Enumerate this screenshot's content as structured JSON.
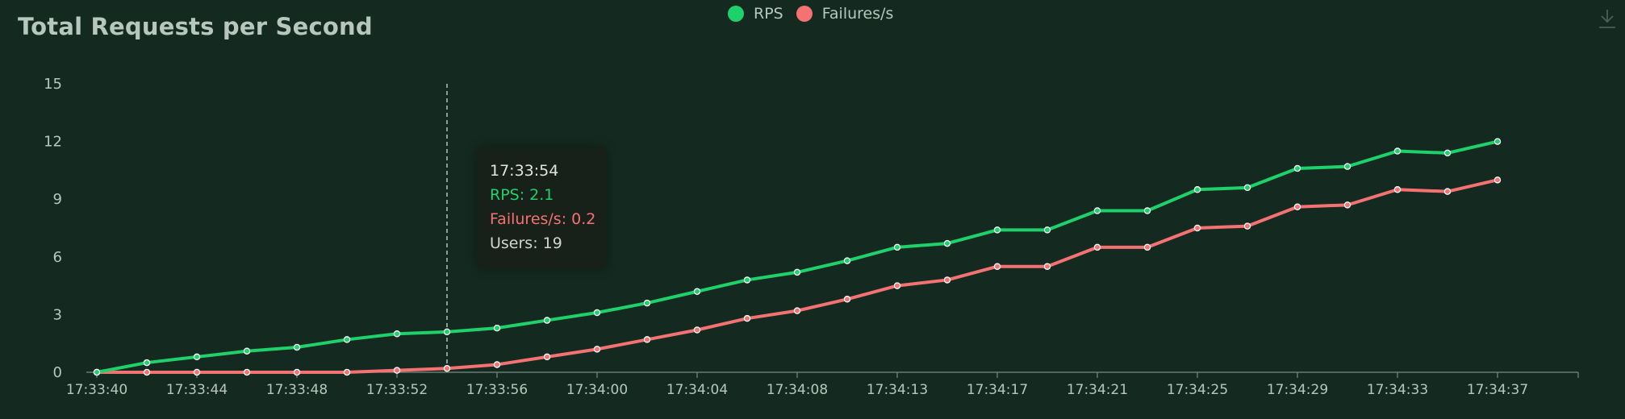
{
  "chart_data": {
    "type": "line",
    "title": "Total Requests per Second",
    "x": [
      "17:33:40",
      "17:33:42",
      "17:33:44",
      "17:33:46",
      "17:33:48",
      "17:33:50",
      "17:33:52",
      "17:33:54",
      "17:33:56",
      "17:33:58",
      "17:34:00",
      "17:34:02",
      "17:34:04",
      "17:34:06",
      "17:34:08",
      "17:34:10",
      "17:34:13",
      "17:34:15",
      "17:34:17",
      "17:34:19",
      "17:34:21",
      "17:34:23",
      "17:34:25",
      "17:34:27",
      "17:34:29",
      "17:34:31",
      "17:34:33",
      "17:34:35",
      "17:34:37"
    ],
    "x_tick_labels": [
      "17:33:40",
      "17:33:44",
      "17:33:48",
      "17:33:52",
      "17:33:56",
      "17:34:00",
      "17:34:04",
      "17:34:08",
      "17:34:13",
      "17:34:17",
      "17:34:21",
      "17:34:25",
      "17:34:29",
      "17:34:33",
      "17:34:37"
    ],
    "series": [
      {
        "name": "RPS",
        "color": "#1fd16a",
        "values": [
          0,
          0.5,
          0.8,
          1.1,
          1.3,
          1.7,
          2.0,
          2.1,
          2.3,
          2.7,
          3.1,
          3.6,
          4.2,
          4.8,
          5.2,
          5.8,
          6.5,
          6.7,
          7.4,
          7.4,
          8.4,
          8.4,
          9.5,
          9.6,
          10.6,
          10.7,
          11.5,
          11.4,
          12.0
        ]
      },
      {
        "name": "Failures/s",
        "color": "#f47272",
        "values": [
          0,
          0,
          0,
          0,
          0,
          0,
          0.1,
          0.2,
          0.4,
          0.8,
          1.2,
          1.7,
          2.2,
          2.8,
          3.2,
          3.8,
          4.5,
          4.8,
          5.5,
          5.5,
          6.5,
          6.5,
          7.5,
          7.6,
          8.6,
          8.7,
          9.5,
          9.4,
          10.0
        ]
      }
    ],
    "y_ticks": [
      0,
      3,
      6,
      9,
      12,
      15
    ],
    "ylim": [
      0,
      15
    ],
    "legend_position": "top-center",
    "grid": false
  },
  "tooltip": {
    "time": "17:33:54",
    "rps": "RPS: 2.1",
    "failures": "Failures/s: 0.2",
    "users": "Users: 19",
    "index": 7
  },
  "colors": {
    "background": "#142920",
    "text": "#b8c7be",
    "axis": "#7a8a82",
    "rps": "#1fd16a",
    "failures": "#f47272"
  },
  "icons": {
    "download": "download-icon"
  }
}
